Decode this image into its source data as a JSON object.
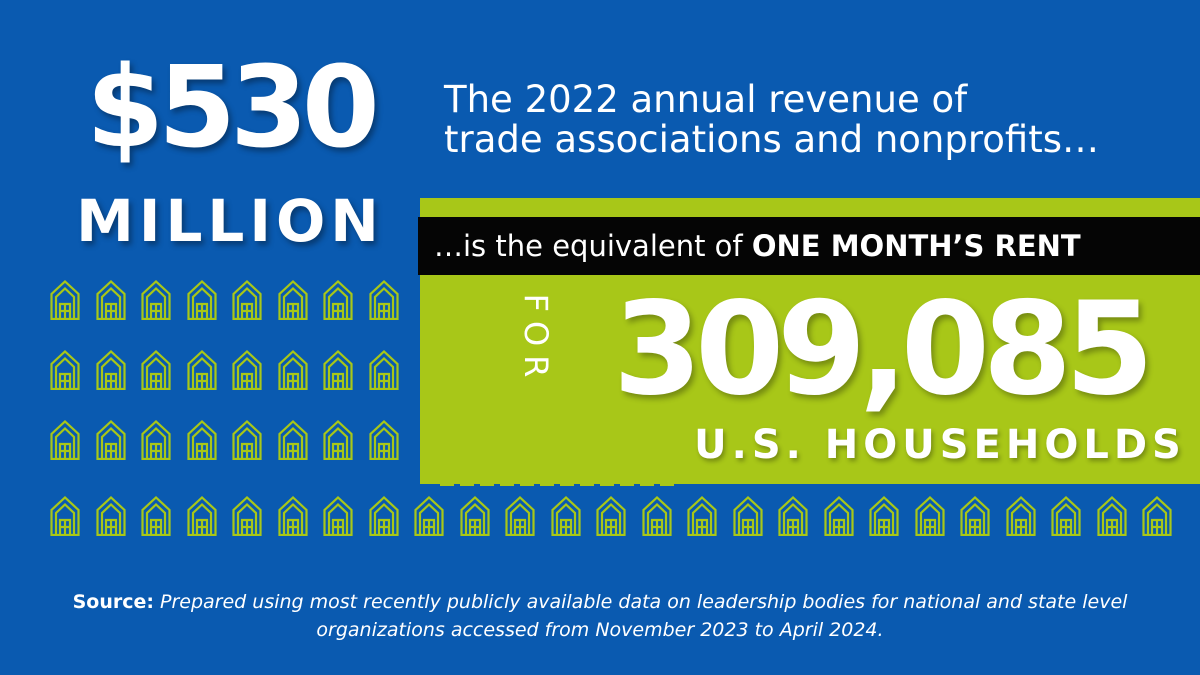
{
  "hero": {
    "amount": "$530",
    "unit": "MILLION"
  },
  "headline": {
    "line1": "The 2022 annual revenue of",
    "line2": "trade associations and nonprofits…"
  },
  "equivalent": {
    "lead": "…is the equivalent of ",
    "emphasis": "ONE MONTH’S RENT"
  },
  "result": {
    "for_label": "FOR",
    "households_count": "309,085",
    "households_label": "U.S. HOUSEHOLDS"
  },
  "source": {
    "label": "Source:",
    "text": "Prepared using most recently publicly available data on leadership bodies for national and state level organizations accessed from November 2023 to April 2024."
  },
  "colors": {
    "background": "#0a5ab0",
    "accent_green": "#a8c718",
    "bar_black": "#050505",
    "text_white": "#ffffff"
  },
  "icons": {
    "house": "house-outline-icon"
  }
}
